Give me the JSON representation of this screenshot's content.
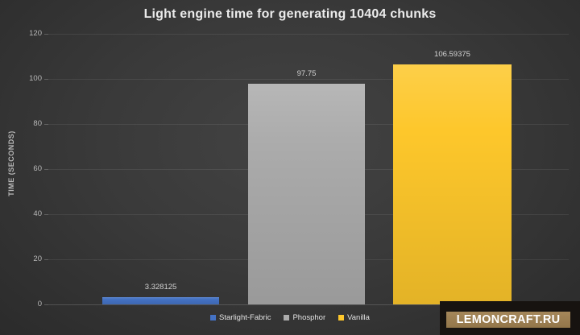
{
  "chart_data": {
    "type": "bar",
    "title": "Light engine time for generating 10404 chunks",
    "xlabel": "",
    "ylabel": "TIME (SECONDS)",
    "categories": [
      "Starlight-Fabric",
      "Phosphor",
      "Vanilla"
    ],
    "values": [
      3.328125,
      97.75,
      106.59375
    ],
    "value_labels": [
      "3.328125",
      "97.75",
      "106.59375"
    ],
    "colors": [
      "#4472c4",
      "#ababab",
      "#fdc72b"
    ],
    "ylim": [
      0,
      120
    ],
    "yticks": [
      0,
      20,
      40,
      60,
      80,
      100,
      120
    ],
    "grid": true,
    "legend_position": "bottom",
    "background": "#3a3a3a",
    "text_color": "#d2d2d2"
  },
  "watermark": {
    "text": "LEMONCRAFT.RU",
    "badge_color": "#9c7f4e",
    "box_color": "#171310"
  }
}
